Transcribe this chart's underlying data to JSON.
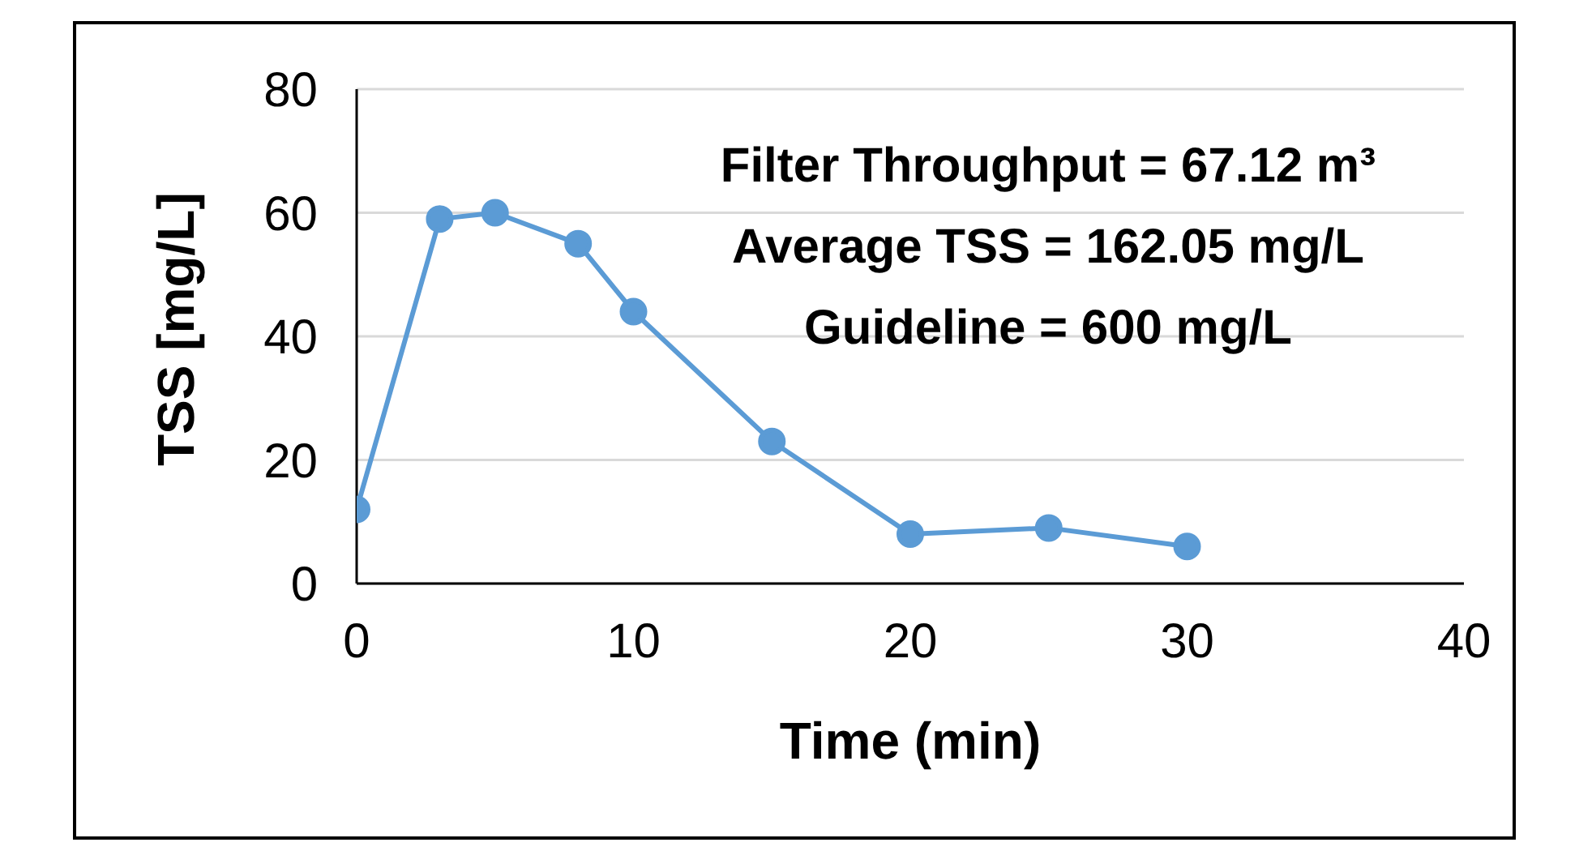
{
  "chart_data": {
    "type": "line",
    "xlabel": "Time (min)",
    "ylabel": "TSS [mg/L]",
    "x": [
      0,
      3,
      5,
      8,
      10,
      15,
      20,
      25,
      30
    ],
    "series": [
      {
        "color": "#5b9bd5",
        "values": [
          12,
          59,
          60,
          55,
          44,
          23,
          8,
          9,
          6
        ]
      }
    ],
    "xlim": [
      0,
      40
    ],
    "xticks": [
      0,
      10,
      20,
      30,
      40
    ],
    "ylim": [
      0,
      80
    ],
    "yticks": [
      0,
      20,
      40,
      60,
      80
    ],
    "grid": "y",
    "marker": "circle",
    "line_style": "solid",
    "annotations": [
      "Filter Throughput = 67.12 m³",
      "Average TSS = 162.05 mg/L",
      "Guideline = 600 mg/L"
    ]
  }
}
